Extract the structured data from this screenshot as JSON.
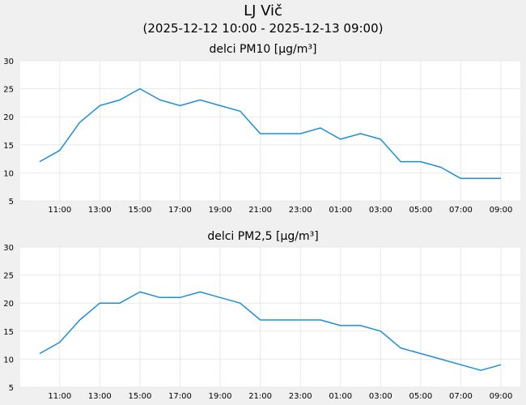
{
  "header": {
    "title": "LJ Vič",
    "subtitle": "(2025-12-12 10:00 - 2025-12-13 09:00)"
  },
  "colors": {
    "line": "#1a8fd8",
    "plot_background": "#ffffff",
    "page_background": "#f0f0f0",
    "grid": "#e8e8e8"
  },
  "chart_data": [
    {
      "type": "line",
      "title": "delci PM10 [µg/m³]",
      "xlabel": "",
      "ylabel": "",
      "ylim": [
        5,
        30
      ],
      "yticks": [
        5,
        10,
        15,
        20,
        25,
        30
      ],
      "grid": true,
      "x": [
        "10:00",
        "11:00",
        "12:00",
        "13:00",
        "14:00",
        "15:00",
        "16:00",
        "17:00",
        "18:00",
        "19:00",
        "20:00",
        "21:00",
        "22:00",
        "23:00",
        "00:00",
        "01:00",
        "02:00",
        "03:00",
        "04:00",
        "05:00",
        "06:00",
        "07:00",
        "08:00",
        "09:00"
      ],
      "xtick_labels": [
        "11:00",
        "13:00",
        "15:00",
        "17:00",
        "19:00",
        "21:00",
        "23:00",
        "01:00",
        "03:00",
        "05:00",
        "07:00",
        "09:00"
      ],
      "series": [
        {
          "values": [
            12,
            14,
            19,
            22,
            23,
            25,
            23,
            22,
            23,
            22,
            21,
            17,
            17,
            17,
            18,
            16,
            17,
            16,
            12,
            12,
            11,
            9,
            9,
            9
          ]
        }
      ]
    },
    {
      "type": "line",
      "title": "delci PM2,5 [µg/m³]",
      "xlabel": "",
      "ylabel": "",
      "ylim": [
        5,
        30
      ],
      "yticks": [
        5,
        10,
        15,
        20,
        25,
        30
      ],
      "grid": true,
      "x": [
        "10:00",
        "11:00",
        "12:00",
        "13:00",
        "14:00",
        "15:00",
        "16:00",
        "17:00",
        "18:00",
        "19:00",
        "20:00",
        "21:00",
        "22:00",
        "23:00",
        "00:00",
        "01:00",
        "02:00",
        "03:00",
        "04:00",
        "05:00",
        "06:00",
        "07:00",
        "08:00",
        "09:00"
      ],
      "xtick_labels": [
        "11:00",
        "13:00",
        "15:00",
        "17:00",
        "19:00",
        "21:00",
        "23:00",
        "01:00",
        "03:00",
        "05:00",
        "07:00",
        "09:00"
      ],
      "series": [
        {
          "values": [
            11,
            13,
            17,
            20,
            20,
            22,
            21,
            21,
            22,
            21,
            20,
            17,
            17,
            17,
            17,
            16,
            16,
            15,
            12,
            11,
            10,
            9,
            8,
            9
          ]
        }
      ]
    }
  ]
}
